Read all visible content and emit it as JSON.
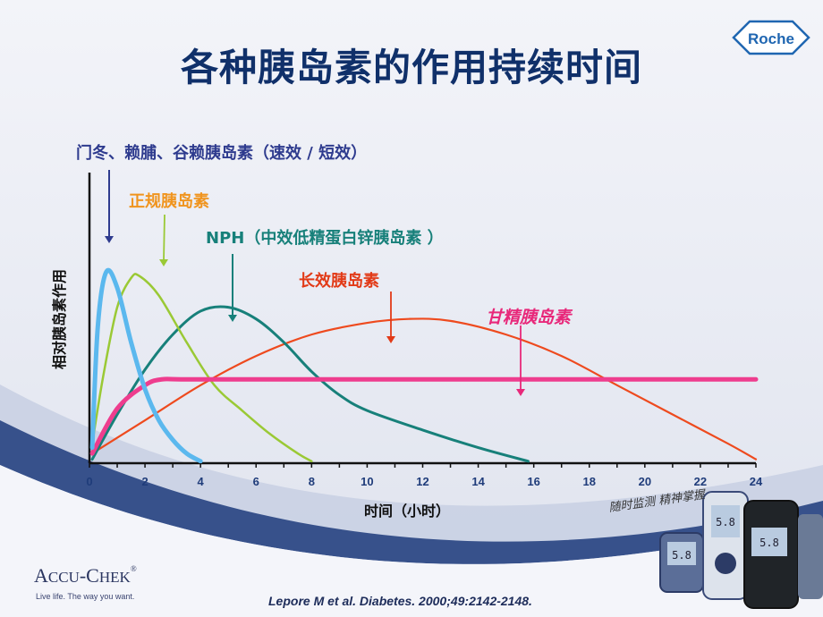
{
  "slide": {
    "title": "各种胰岛素的作用持续时间",
    "brand_logo": "Roche",
    "footer_logo": "ACCU-CHEK",
    "footer_slogan": "Live life. The way you want.",
    "citation": "Lepore M et al. Diabetes. 2000;49:2142-2148.",
    "handwriting": "随时监测 精神掌握"
  },
  "colors": {
    "title": "#10306a",
    "rapid": "#5bb8ee",
    "regular": "#9ac935",
    "nph": "#17807a",
    "long": "#ee4a1e",
    "glargine": "#ee3d8e",
    "rapid_label": "#2e3b8e",
    "regular_label": "#f0941e",
    "glargine_label": "#e8287a"
  },
  "chart_data": {
    "type": "line",
    "ylabel": "相对胰岛素作用",
    "xlabel": "时间（小时）",
    "xlim": [
      0,
      24
    ],
    "x_ticks": [
      "0",
      "2",
      "4",
      "6",
      "8",
      "10",
      "12",
      "14",
      "16",
      "18",
      "20",
      "22",
      "24"
    ],
    "series": [
      {
        "name": "门冬、赖脯、谷赖胰岛素（速效 / 短效）",
        "key": "rapid",
        "x": [
          0.1,
          0.3,
          0.6,
          1.0,
          1.5,
          2.0,
          2.5,
          3.0,
          3.5,
          4.0
        ],
        "y": [
          0.08,
          0.7,
          0.98,
          0.9,
          0.62,
          0.38,
          0.22,
          0.12,
          0.05,
          0.01
        ]
      },
      {
        "name": "正规胰岛素",
        "key": "regular",
        "x": [
          0.1,
          0.5,
          1.0,
          1.5,
          1.8,
          2.5,
          3.5,
          4.5,
          5.5,
          6.5,
          7.5,
          8.0
        ],
        "y": [
          0.1,
          0.45,
          0.8,
          0.95,
          0.96,
          0.86,
          0.62,
          0.4,
          0.27,
          0.15,
          0.05,
          0.01
        ]
      },
      {
        "name": "NPH（中效低精蛋白锌胰岛素 ）",
        "key": "nph",
        "x": [
          0.1,
          1.0,
          2.0,
          3.0,
          4.0,
          5.0,
          6.0,
          7.0,
          8.0,
          9.0,
          10.0,
          12.0,
          14.0,
          15.8
        ],
        "y": [
          0.02,
          0.25,
          0.48,
          0.66,
          0.78,
          0.8,
          0.74,
          0.62,
          0.47,
          0.35,
          0.27,
          0.17,
          0.08,
          0.01
        ]
      },
      {
        "name": "长效胰岛素",
        "key": "long",
        "x": [
          0.1,
          2.0,
          4.0,
          6.0,
          8.0,
          10.0,
          11.5,
          13.0,
          15.0,
          17.0,
          19.0,
          21.0,
          23.0,
          24.0
        ],
        "y": [
          0.05,
          0.22,
          0.4,
          0.55,
          0.66,
          0.72,
          0.74,
          0.73,
          0.66,
          0.55,
          0.4,
          0.25,
          0.1,
          0.02
        ]
      },
      {
        "name": "甘精胰岛素",
        "key": "glargine",
        "x": [
          0.1,
          1.0,
          2.0,
          2.6,
          3.5,
          8.0,
          12.0,
          16.0,
          20.0,
          24.0
        ],
        "y": [
          0.05,
          0.28,
          0.4,
          0.43,
          0.43,
          0.43,
          0.43,
          0.43,
          0.43,
          0.43
        ]
      }
    ]
  }
}
